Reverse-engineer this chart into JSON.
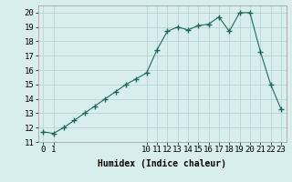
{
  "x": [
    0,
    1,
    2,
    3,
    4,
    5,
    6,
    7,
    8,
    9,
    10,
    11,
    12,
    13,
    14,
    15,
    16,
    17,
    18,
    19,
    20,
    21,
    22,
    23
  ],
  "y": [
    11.7,
    11.6,
    12.0,
    12.5,
    13.0,
    13.5,
    14.0,
    14.5,
    15.0,
    15.4,
    15.8,
    17.4,
    18.7,
    19.0,
    18.8,
    19.1,
    19.2,
    19.7,
    18.7,
    20.0,
    20.0,
    17.3,
    15.0,
    13.3
  ],
  "line_color": "#1a6b5a",
  "marker": "+",
  "marker_size": 4,
  "bg_color": "#d8eeed",
  "grid_color": "#b8d4d4",
  "xlabel": "Humidex (Indice chaleur)",
  "ylim": [
    11,
    20.5
  ],
  "xlim": [
    -0.5,
    23.5
  ],
  "yticks": [
    11,
    12,
    13,
    14,
    15,
    16,
    17,
    18,
    19,
    20
  ],
  "xtick_labels_show": [
    0,
    1,
    10,
    11,
    12,
    13,
    14,
    15,
    16,
    17,
    18,
    19,
    20,
    21,
    22,
    23
  ],
  "label_fontsize": 7,
  "tick_fontsize": 6.5
}
